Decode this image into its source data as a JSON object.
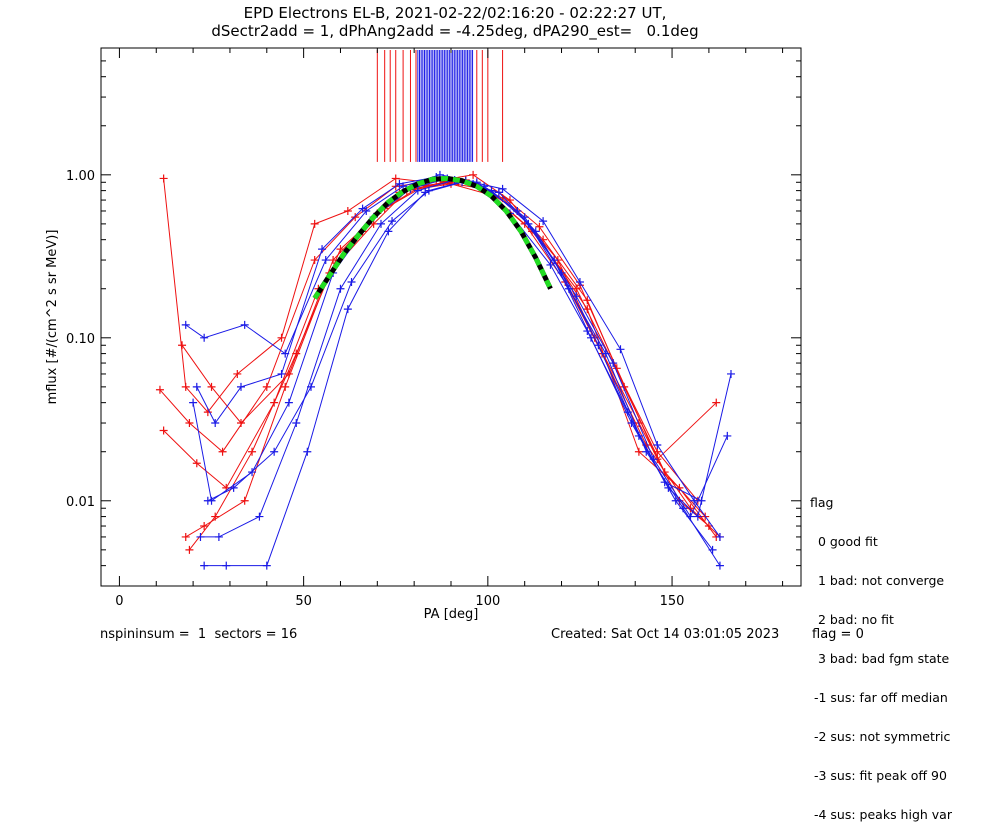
{
  "header": {
    "title_line1": "EPD Electrons EL-B, 2021-02-22/02:16:20 - 02:22:27 UT,",
    "title_line2": "dSectr2add = 1, dPhAng2add = -4.25deg, dPA290_est=   0.1deg"
  },
  "legend": {
    "title": "flag",
    "items": [
      "  0 good fit",
      "  1 bad: not converge",
      "  2 bad: no fit",
      "  3 bad: bad fgm state",
      " -1 sus: far off median",
      " -2 sus: not symmetric",
      " -3 sus: fit peak off 90",
      " -4 sus: peaks high var"
    ]
  },
  "footer": {
    "left": "nspininsum =  1  sectors = 16",
    "created": "Created: Sat Oct 14 03:01:05 2023",
    "flag": "flag = 0"
  },
  "colors": {
    "sector_red": "#ee1111",
    "sector_blue": "#1a1ae6",
    "fit_green": "#22dd22",
    "fit_black": "#000000"
  },
  "chart_data": {
    "type": "line",
    "xlabel": "PA [deg]",
    "ylabel": "mflux [#/(cm^2 s sr MeV)]",
    "xlim": [
      -5,
      185
    ],
    "ylim": [
      0.003,
      6
    ],
    "yscale": "log",
    "xticks": [
      0,
      50,
      100,
      150
    ],
    "yticks": [
      0.01,
      0.1,
      1.0
    ],
    "ytick_labels": [
      "0.01",
      "0.10",
      "1.00"
    ],
    "grid": false,
    "red_series_description_values": {
      "x": [
        12,
        18,
        24,
        32,
        44,
        53,
        62,
        75,
        84,
        96,
        106,
        118,
        127,
        141,
        152,
        162
      ],
      "y": [
        0.95,
        0.05,
        0.035,
        0.06,
        0.1,
        0.5,
        0.6,
        0.95,
        0.9,
        1.0,
        0.7,
        0.3,
        0.15,
        0.02,
        0.012,
        0.006
      ]
    },
    "series": [
      {
        "name": "",
        "color": "red",
        "x": [
          12,
          18,
          24,
          32,
          44,
          53,
          62,
          75,
          84,
          96,
          106,
          118,
          127,
          141,
          152,
          162
        ],
        "y": [
          0.95,
          0.05,
          0.035,
          0.06,
          0.1,
          0.5,
          0.6,
          0.95,
          0.9,
          1.0,
          0.7,
          0.3,
          0.15,
          0.02,
          0.012,
          0.006
        ]
      },
      {
        "name": "",
        "color": "red",
        "x": [
          11,
          19,
          28,
          40,
          53,
          64,
          75,
          86,
          97,
          108,
          119,
          129,
          141,
          152,
          160
        ],
        "y": [
          0.048,
          0.03,
          0.02,
          0.05,
          0.3,
          0.55,
          0.85,
          0.92,
          0.88,
          0.6,
          0.3,
          0.1,
          0.03,
          0.01,
          0.007
        ]
      },
      {
        "name": "",
        "color": "red",
        "x": [
          12,
          21,
          29,
          42,
          54,
          66,
          76,
          88,
          99,
          110,
          121,
          131,
          143,
          155,
          163
        ],
        "y": [
          0.027,
          0.017,
          0.012,
          0.04,
          0.2,
          0.45,
          0.78,
          0.9,
          0.82,
          0.5,
          0.22,
          0.08,
          0.022,
          0.009,
          0.006
        ]
      },
      {
        "name": "",
        "color": "red",
        "x": [
          18,
          23,
          34,
          45,
          57,
          69,
          78,
          90,
          101,
          112,
          124,
          134,
          146,
          157
        ],
        "y": [
          0.006,
          0.007,
          0.01,
          0.05,
          0.25,
          0.5,
          0.8,
          0.88,
          0.75,
          0.45,
          0.2,
          0.07,
          0.02,
          0.01
        ]
      },
      {
        "name": "",
        "color": "red",
        "x": [
          19,
          26,
          36,
          48,
          60,
          72,
          83,
          94,
          104,
          115,
          127,
          137,
          148,
          159
        ],
        "y": [
          0.005,
          0.008,
          0.02,
          0.08,
          0.35,
          0.62,
          0.86,
          0.93,
          0.72,
          0.4,
          0.17,
          0.05,
          0.015,
          0.008
        ]
      },
      {
        "name": "",
        "color": "red",
        "x": [
          17,
          25,
          33,
          46,
          58,
          70,
          81,
          92,
          103,
          114,
          125,
          135,
          146,
          162
        ],
        "y": [
          0.09,
          0.05,
          0.03,
          0.06,
          0.3,
          0.58,
          0.83,
          0.91,
          0.78,
          0.48,
          0.21,
          0.065,
          0.018,
          0.04
        ]
      },
      {
        "name": "",
        "color": "blue",
        "x": [
          18,
          23,
          34,
          45,
          56,
          67,
          77,
          87,
          97,
          108,
          118,
          128,
          139,
          149,
          157,
          166
        ],
        "y": [
          0.12,
          0.1,
          0.12,
          0.08,
          0.3,
          0.6,
          0.85,
          1.0,
          0.9,
          0.6,
          0.3,
          0.1,
          0.03,
          0.012,
          0.008,
          0.06
        ]
      },
      {
        "name": "",
        "color": "blue",
        "x": [
          20,
          25,
          36,
          46,
          58,
          69,
          79,
          89,
          99,
          110,
          120,
          130,
          141,
          151,
          161
        ],
        "y": [
          0.04,
          0.01,
          0.015,
          0.04,
          0.25,
          0.55,
          0.82,
          0.95,
          0.85,
          0.55,
          0.25,
          0.09,
          0.025,
          0.01,
          0.005
        ]
      },
      {
        "name": "",
        "color": "blue",
        "x": [
          22,
          27,
          38,
          48,
          60,
          71,
          81,
          91,
          101,
          111,
          122,
          132,
          143,
          153,
          163
        ],
        "y": [
          0.006,
          0.006,
          0.008,
          0.03,
          0.2,
          0.5,
          0.8,
          0.93,
          0.8,
          0.5,
          0.2,
          0.08,
          0.02,
          0.009,
          0.004
        ]
      },
      {
        "name": "",
        "color": "blue",
        "x": [
          23,
          29,
          40,
          51,
          62,
          73,
          83,
          93,
          103,
          113,
          124,
          134,
          145,
          155,
          165
        ],
        "y": [
          0.004,
          0.004,
          0.004,
          0.02,
          0.15,
          0.45,
          0.78,
          0.9,
          0.78,
          0.45,
          0.18,
          0.07,
          0.018,
          0.008,
          0.025
        ]
      },
      {
        "name": "",
        "color": "blue",
        "x": [
          21,
          26,
          33,
          44,
          55,
          66,
          76,
          86,
          96,
          106,
          117,
          127,
          138,
          148,
          158
        ],
        "y": [
          0.05,
          0.03,
          0.05,
          0.06,
          0.35,
          0.62,
          0.88,
          0.97,
          0.88,
          0.58,
          0.28,
          0.11,
          0.035,
          0.013,
          0.01
        ]
      },
      {
        "name": "",
        "color": "blue",
        "x": [
          24,
          31,
          42,
          52,
          63,
          74,
          84,
          94,
          104,
          115,
          125,
          136,
          146,
          156,
          163
        ],
        "y": [
          0.01,
          0.012,
          0.02,
          0.05,
          0.22,
          0.52,
          0.8,
          0.92,
          0.82,
          0.52,
          0.22,
          0.085,
          0.022,
          0.01,
          0.006
        ]
      }
    ],
    "fit": {
      "x": [
        53,
        57,
        61,
        65,
        69,
        73,
        77,
        81,
        85,
        89,
        93,
        97,
        101,
        105,
        109,
        113,
        117
      ],
      "y": [
        0.175,
        0.24,
        0.33,
        0.43,
        0.55,
        0.68,
        0.79,
        0.88,
        0.94,
        0.95,
        0.92,
        0.85,
        0.74,
        0.6,
        0.45,
        0.31,
        0.2
      ]
    }
  }
}
